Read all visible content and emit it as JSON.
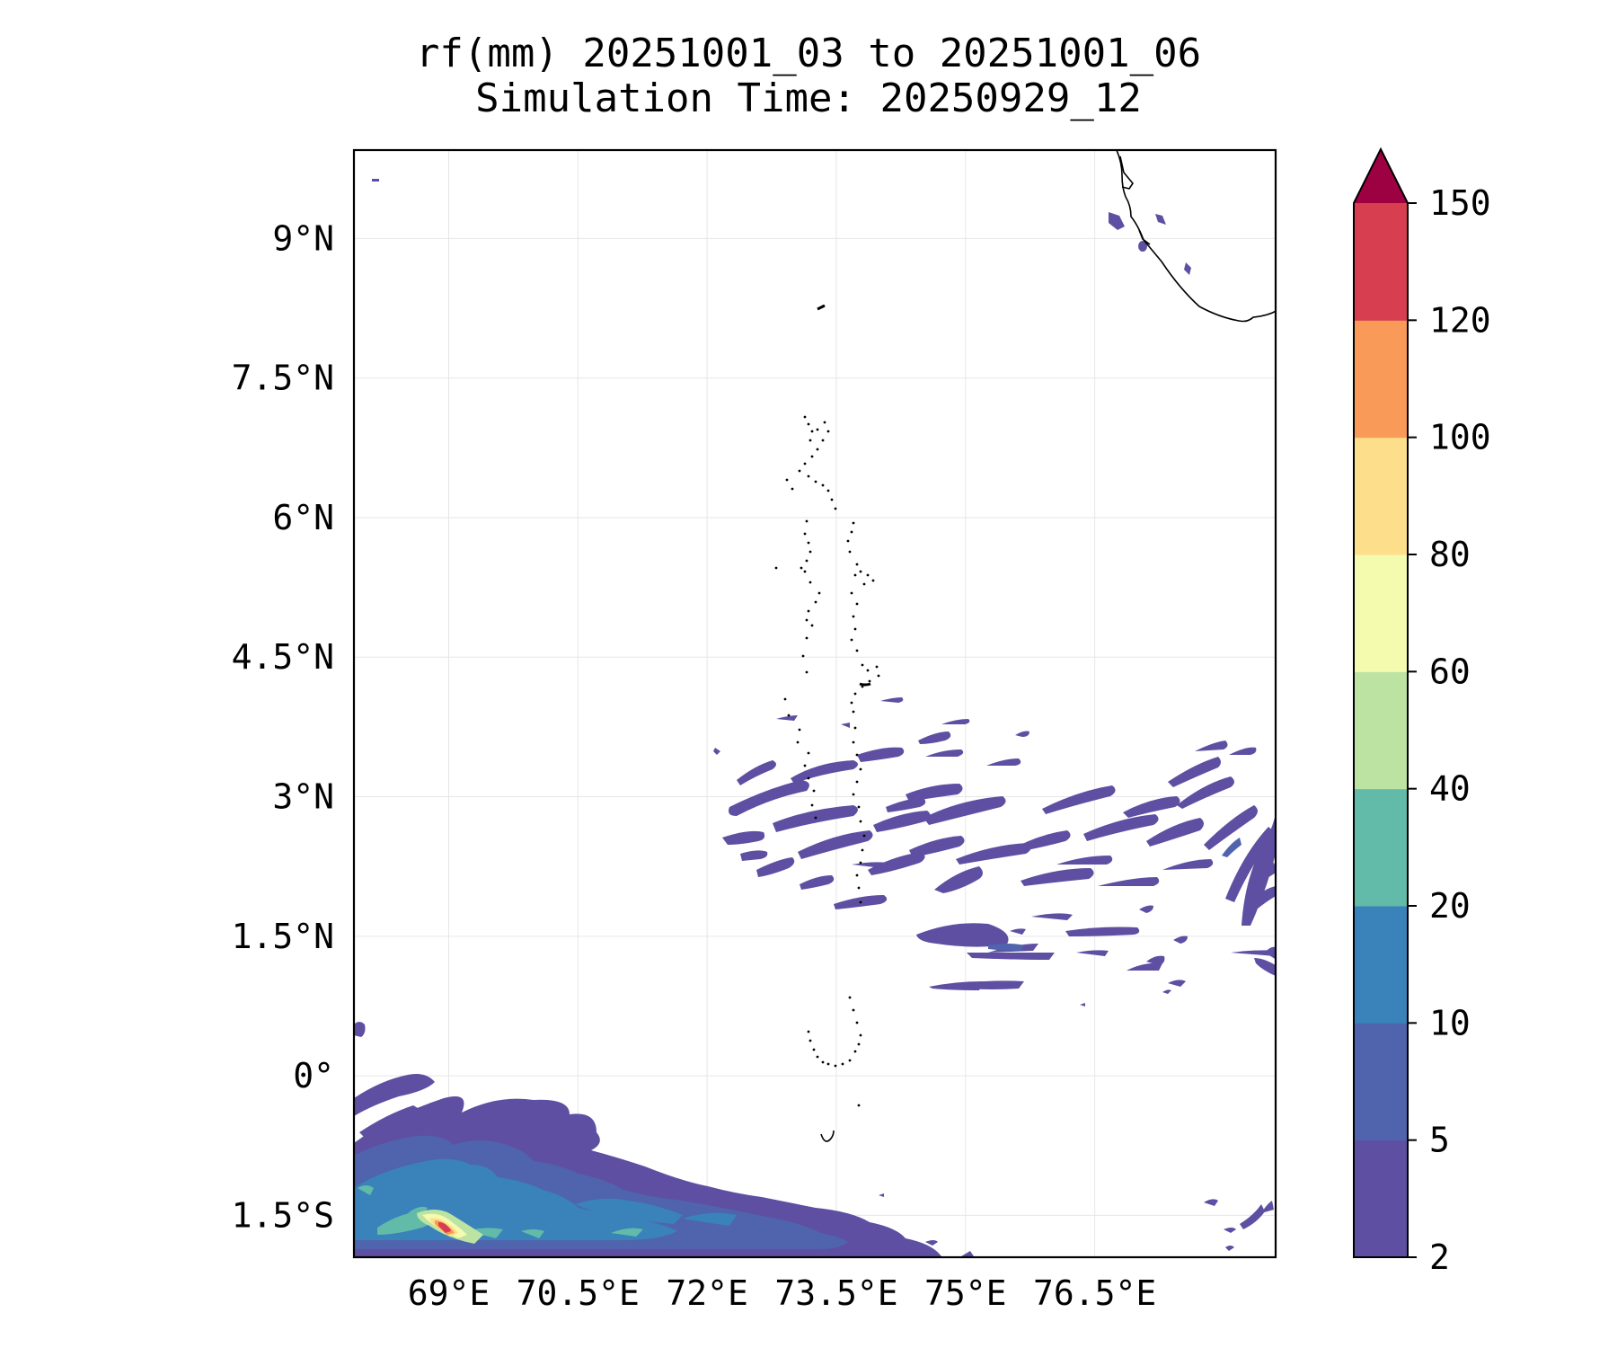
{
  "chart_data": {
    "type": "heatmap",
    "title": "rf(mm) 20251001_03 to 20251001_06",
    "subtitle": "Simulation Time: 20250929_12",
    "xlabel": "",
    "ylabel": "",
    "xlim": [
      67.9,
      78.6
    ],
    "ylim": [
      -1.95,
      9.95
    ],
    "x_ticks": [
      {
        "value": 69.0,
        "label": "69°E"
      },
      {
        "value": 70.5,
        "label": "70.5°E"
      },
      {
        "value": 72.0,
        "label": "72°E"
      },
      {
        "value": 73.5,
        "label": "73.5°E"
      },
      {
        "value": 75.0,
        "label": "75°E"
      },
      {
        "value": 76.5,
        "label": "76.5°E"
      }
    ],
    "y_ticks": [
      {
        "value": 9.0,
        "label": "9°N"
      },
      {
        "value": 7.5,
        "label": "7.5°N"
      },
      {
        "value": 6.0,
        "label": "6°N"
      },
      {
        "value": 4.5,
        "label": "4.5°N"
      },
      {
        "value": 3.0,
        "label": "3°N"
      },
      {
        "value": 1.5,
        "label": "1.5°N"
      },
      {
        "value": 0.0,
        "label": "0°"
      },
      {
        "value": -1.5,
        "label": "1.5°S"
      }
    ],
    "grid": true,
    "colorbar": {
      "levels": [
        2,
        5,
        10,
        20,
        40,
        60,
        80,
        100,
        120,
        150
      ],
      "labels": [
        "2",
        "5",
        "10",
        "20",
        "40",
        "60",
        "80",
        "100",
        "120",
        "150"
      ],
      "colors": [
        "#5e4fa2",
        "#4f64ac",
        "#3a82ba",
        "#62bba8",
        "#bde3a2",
        "#f4faae",
        "#fddf8b",
        "#f99a58",
        "#d73f50",
        "#9e0142"
      ],
      "extend": "max",
      "placement": "right"
    },
    "rain_areas": [
      {
        "lon": 73.5,
        "lat": 2.9,
        "level": "2-5",
        "desc": "scattered bands"
      },
      {
        "lon": 75.5,
        "lat": 2.5,
        "level": "2-5",
        "desc": "scattered bands"
      },
      {
        "lon": 77.5,
        "lat": 2.8,
        "level": "2-5",
        "desc": "scattered bands"
      },
      {
        "lon": 69.6,
        "lat": -1.4,
        "level": "5-20",
        "desc": "southwest cluster"
      },
      {
        "lon": 68.95,
        "lat": -1.6,
        "level": "100-150",
        "desc": "maximum"
      }
    ],
    "coastline": "southern India and Maldives island chain"
  }
}
